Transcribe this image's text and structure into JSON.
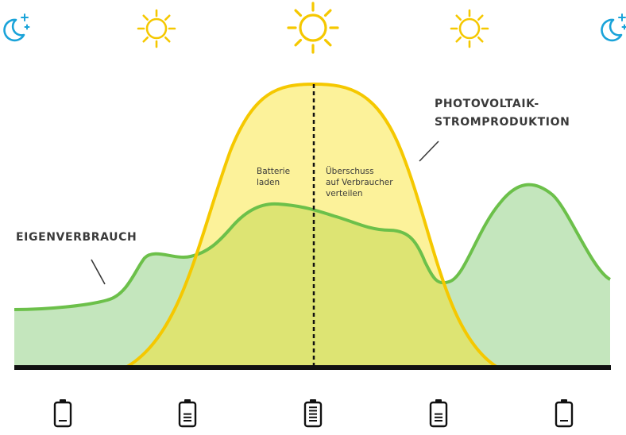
{
  "labels": {
    "consumption": "EIGENVERBRAUCH",
    "pv_line1": "PHOTOVOLTAIK-",
    "pv_line2": "STROMPRODUKTION",
    "charge_line1": "Batterie",
    "charge_line2": "laden",
    "surplus_line1": "Überschuss",
    "surplus_line2": "auf Verbraucher",
    "surplus_line3": "verteilen"
  },
  "timeline": {
    "sky_icons": [
      "moon-icon",
      "sun-icon",
      "sun-icon",
      "sun-icon",
      "moon-icon"
    ],
    "sun_sizes": [
      "small",
      "large",
      "small"
    ],
    "battery_levels": [
      0.2,
      0.6,
      1.0,
      0.6,
      0.2
    ]
  },
  "colors": {
    "consumption_line": "#6cc04a",
    "consumption_fill": "#c4e6bd",
    "production_line": "#f5c800",
    "production_fill": "#fcf29a",
    "overlap_fill": "#dde473",
    "sun": "#f5c800",
    "moon": "#1aa3d9",
    "baseline": "#111111",
    "text": "#3a3a3a"
  }
}
